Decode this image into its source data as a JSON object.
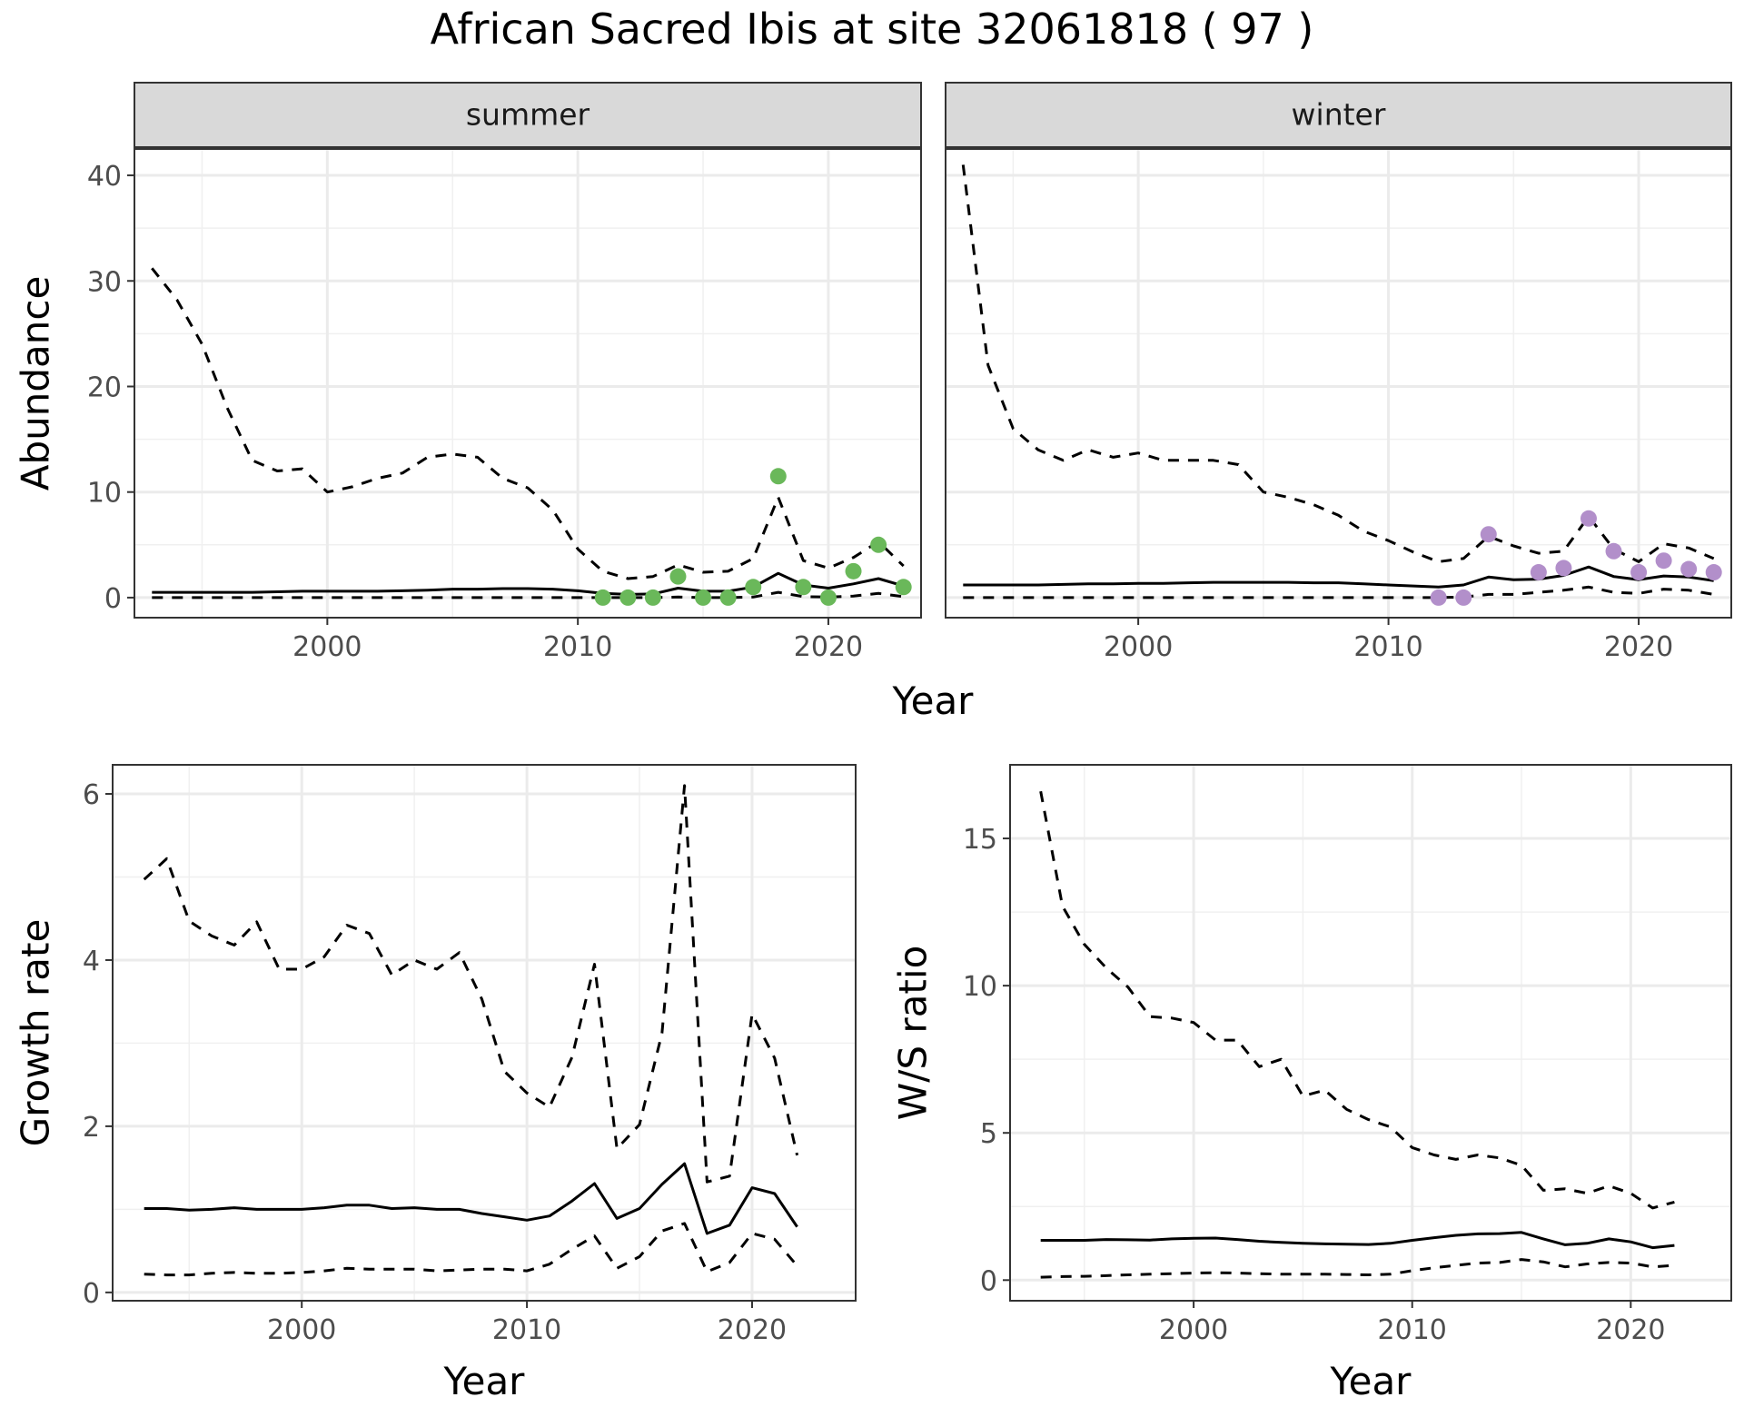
{
  "title": "African Sacred Ibis at site 32061818 ( 97 )",
  "chart_data": [
    {
      "type": "line",
      "panel": "summer",
      "strip_label": "summer",
      "xlabel": "Year",
      "ylabel": "Abundance",
      "xlim": [
        1992.3,
        2023.7
      ],
      "ylim": [
        -1.9,
        42.5
      ],
      "xticks": [
        2000,
        2010,
        2020
      ],
      "yticks": [
        0,
        10,
        20,
        30,
        40
      ],
      "grid": true,
      "series": [
        {
          "style": "solid",
          "x": [
            1993,
            1994,
            1995,
            1996,
            1997,
            1998,
            1999,
            2000,
            2001,
            2002,
            2003,
            2004,
            2005,
            2006,
            2007,
            2008,
            2009,
            2010,
            2011,
            2012,
            2013,
            2014,
            2015,
            2016,
            2017,
            2018,
            2019,
            2020,
            2021,
            2022,
            2023
          ],
          "y": [
            0.5,
            0.5,
            0.5,
            0.5,
            0.5,
            0.55,
            0.6,
            0.6,
            0.6,
            0.6,
            0.65,
            0.7,
            0.8,
            0.8,
            0.85,
            0.85,
            0.8,
            0.65,
            0.4,
            0.3,
            0.35,
            0.9,
            0.6,
            0.6,
            1.0,
            2.3,
            1.2,
            0.9,
            1.3,
            1.8,
            1.1
          ]
        },
        {
          "style": "dashed",
          "x": [
            1993,
            1994,
            1995,
            1996,
            1997,
            1998,
            1999,
            2000,
            2001,
            2002,
            2003,
            2004,
            2005,
            2006,
            2007,
            2008,
            2009,
            2010,
            2011,
            2012,
            2013,
            2014,
            2015,
            2016,
            2017,
            2018,
            2019,
            2020,
            2021,
            2022,
            2023
          ],
          "y": [
            31.2,
            28.2,
            24,
            18,
            13,
            12,
            12.2,
            10,
            10.5,
            11.3,
            11.8,
            13.3,
            13.6,
            13.3,
            11.3,
            10.4,
            8.3,
            4.6,
            2.5,
            1.8,
            2,
            3.1,
            2.4,
            2.5,
            3.7,
            9.5,
            3.5,
            2.8,
            3.8,
            5.3,
            3
          ]
        },
        {
          "style": "dashed",
          "x": [
            1993,
            1994,
            1995,
            1996,
            1997,
            1998,
            1999,
            2000,
            2001,
            2002,
            2003,
            2004,
            2005,
            2006,
            2007,
            2008,
            2009,
            2010,
            2011,
            2012,
            2013,
            2014,
            2015,
            2016,
            2017,
            2018,
            2019,
            2020,
            2021,
            2022,
            2023
          ],
          "y": [
            0,
            0,
            0,
            0,
            0,
            0,
            0,
            0,
            0,
            0,
            0,
            0,
            0,
            0,
            0,
            0,
            0,
            0,
            0,
            0,
            0,
            0.05,
            0,
            0,
            0.05,
            0.5,
            0.1,
            0.05,
            0.15,
            0.4,
            0.1
          ]
        }
      ],
      "points": {
        "color": "#6ab85a",
        "x": [
          2011,
          2012,
          2013,
          2014,
          2015,
          2016,
          2017,
          2018,
          2019,
          2020,
          2021,
          2022,
          2023
        ],
        "y": [
          0,
          0,
          0,
          2,
          0,
          0,
          1,
          11.5,
          1,
          0,
          2.5,
          5,
          1
        ]
      }
    },
    {
      "type": "line",
      "panel": "winter",
      "strip_label": "winter",
      "xlabel": "Year",
      "ylabel": "Abundance",
      "xlim": [
        1992.3,
        2023.7
      ],
      "ylim": [
        -1.9,
        42.5
      ],
      "xticks": [
        2000,
        2010,
        2020
      ],
      "yticks": [
        0,
        10,
        20,
        30,
        40
      ],
      "grid": true,
      "series": [
        {
          "style": "solid",
          "x": [
            1993,
            1994,
            1995,
            1996,
            1997,
            1998,
            1999,
            2000,
            2001,
            2002,
            2003,
            2004,
            2005,
            2006,
            2007,
            2008,
            2009,
            2010,
            2011,
            2012,
            2013,
            2014,
            2015,
            2016,
            2017,
            2018,
            2019,
            2020,
            2021,
            2022,
            2023
          ],
          "y": [
            1.2,
            1.2,
            1.2,
            1.2,
            1.25,
            1.3,
            1.3,
            1.35,
            1.35,
            1.4,
            1.45,
            1.45,
            1.45,
            1.45,
            1.4,
            1.4,
            1.3,
            1.2,
            1.1,
            1.0,
            1.2,
            1.95,
            1.7,
            1.75,
            2.1,
            2.9,
            2.0,
            1.7,
            2.05,
            1.95,
            1.6
          ]
        },
        {
          "style": "dashed",
          "x": [
            1993,
            1994,
            1995,
            1996,
            1997,
            1998,
            1999,
            2000,
            2001,
            2002,
            2003,
            2004,
            2005,
            2006,
            2007,
            2008,
            2009,
            2010,
            2011,
            2012,
            2013,
            2014,
            2015,
            2016,
            2017,
            2018,
            2019,
            2020,
            2021,
            2022,
            2023
          ],
          "y": [
            41,
            22,
            16,
            14,
            13,
            14,
            13.3,
            13.7,
            13,
            13,
            13,
            12.6,
            10,
            9.5,
            8.8,
            7.8,
            6.3,
            5.4,
            4.3,
            3.4,
            3.7,
            5.8,
            4.9,
            4.2,
            4.4,
            7.7,
            4.6,
            3.4,
            5.1,
            4.7,
            3.7
          ]
        },
        {
          "style": "dashed",
          "x": [
            1993,
            1994,
            1995,
            1996,
            1997,
            1998,
            1999,
            2000,
            2001,
            2002,
            2003,
            2004,
            2005,
            2006,
            2007,
            2008,
            2009,
            2010,
            2011,
            2012,
            2013,
            2014,
            2015,
            2016,
            2017,
            2018,
            2019,
            2020,
            2021,
            2022,
            2023
          ],
          "y": [
            0,
            0,
            0,
            0,
            0,
            0,
            0,
            0,
            0,
            0,
            0,
            0,
            0,
            0,
            0,
            0,
            0,
            0,
            0,
            0,
            0.05,
            0.3,
            0.3,
            0.5,
            0.7,
            1.0,
            0.5,
            0.4,
            0.8,
            0.7,
            0.3
          ]
        }
      ],
      "points": {
        "color": "#b28fca",
        "x": [
          2012,
          2013,
          2014,
          2016,
          2017,
          2018,
          2019,
          2020,
          2021,
          2022,
          2023
        ],
        "y": [
          0,
          0,
          6,
          2.4,
          2.8,
          7.5,
          4.4,
          2.4,
          3.5,
          2.7,
          2.4
        ]
      }
    },
    {
      "type": "line",
      "panel": "growth",
      "xlabel": "Year",
      "ylabel": "Growth rate",
      "xlim": [
        1991.6,
        2024.6
      ],
      "ylim": [
        -0.1,
        6.35
      ],
      "xticks": [
        2000,
        2010,
        2020
      ],
      "yticks": [
        0,
        2,
        4,
        6
      ],
      "grid": true,
      "series": [
        {
          "style": "solid",
          "x": [
            1993,
            1994,
            1995,
            1996,
            1997,
            1998,
            1999,
            2000,
            2001,
            2002,
            2003,
            2004,
            2005,
            2006,
            2007,
            2008,
            2009,
            2010,
            2011,
            2012,
            2013,
            2014,
            2015,
            2016,
            2017,
            2018,
            2019,
            2020,
            2021,
            2022
          ],
          "y": [
            1.01,
            1.01,
            0.99,
            1.0,
            1.02,
            1.0,
            1.0,
            1.0,
            1.02,
            1.05,
            1.05,
            1.01,
            1.02,
            1.0,
            1.0,
            0.95,
            0.91,
            0.87,
            0.92,
            1.1,
            1.31,
            0.89,
            1.01,
            1.3,
            1.55,
            0.71,
            0.81,
            1.26,
            1.19,
            0.79
          ]
        },
        {
          "style": "dashed",
          "x": [
            1993,
            1994,
            1995,
            1996,
            1997,
            1998,
            1999,
            2000,
            2001,
            2002,
            2003,
            2004,
            2005,
            2006,
            2007,
            2008,
            2009,
            2010,
            2011,
            2012,
            2013,
            2014,
            2015,
            2016,
            2017,
            2018,
            2019,
            2020,
            2021,
            2022
          ],
          "y": [
            4.97,
            5.22,
            4.47,
            4.29,
            4.18,
            4.46,
            3.89,
            3.89,
            4.04,
            4.42,
            4.32,
            3.82,
            4.0,
            3.89,
            4.09,
            3.53,
            2.66,
            2.4,
            2.23,
            2.83,
            3.95,
            1.73,
            2.02,
            3.12,
            6.1,
            1.33,
            1.4,
            3.35,
            2.82,
            1.65
          ]
        },
        {
          "style": "dashed",
          "x": [
            1993,
            1994,
            1995,
            1996,
            1997,
            1998,
            1999,
            2000,
            2001,
            2002,
            2003,
            2004,
            2005,
            2006,
            2007,
            2008,
            2009,
            2010,
            2011,
            2012,
            2013,
            2014,
            2015,
            2016,
            2017,
            2018,
            2019,
            2020,
            2021,
            2022
          ],
          "y": [
            0.22,
            0.21,
            0.21,
            0.23,
            0.24,
            0.23,
            0.23,
            0.24,
            0.26,
            0.29,
            0.28,
            0.28,
            0.28,
            0.26,
            0.27,
            0.28,
            0.28,
            0.26,
            0.34,
            0.52,
            0.68,
            0.29,
            0.43,
            0.74,
            0.83,
            0.25,
            0.36,
            0.71,
            0.64,
            0.32
          ]
        }
      ]
    },
    {
      "type": "line",
      "panel": "ws-ratio",
      "xlabel": "Year",
      "ylabel": "W/S ratio",
      "xlim": [
        1991.6,
        2024.6
      ],
      "ylim": [
        -0.7,
        17.5
      ],
      "xticks": [
        2000,
        2010,
        2020
      ],
      "yticks": [
        0,
        5,
        10,
        15
      ],
      "grid": true,
      "series": [
        {
          "style": "solid",
          "x": [
            1993,
            1994,
            1995,
            1996,
            1997,
            1998,
            1999,
            2000,
            2001,
            2002,
            2003,
            2004,
            2005,
            2006,
            2007,
            2008,
            2009,
            2010,
            2011,
            2012,
            2013,
            2014,
            2015,
            2016,
            2017,
            2018,
            2019,
            2020,
            2021,
            2022
          ],
          "y": [
            1.35,
            1.35,
            1.35,
            1.38,
            1.37,
            1.36,
            1.4,
            1.42,
            1.43,
            1.38,
            1.32,
            1.28,
            1.25,
            1.23,
            1.22,
            1.21,
            1.25,
            1.35,
            1.44,
            1.52,
            1.57,
            1.58,
            1.62,
            1.4,
            1.2,
            1.25,
            1.4,
            1.3,
            1.1,
            1.18
          ]
        },
        {
          "style": "dashed",
          "x": [
            1993,
            1994,
            1995,
            1996,
            1997,
            1998,
            1999,
            2000,
            2001,
            2002,
            2003,
            2004,
            2005,
            2006,
            2007,
            2008,
            2009,
            2010,
            2011,
            2012,
            2013,
            2014,
            2015,
            2016,
            2017,
            2018,
            2019,
            2020,
            2021,
            2022
          ],
          "y": [
            16.6,
            12.7,
            11.4,
            10.6,
            9.95,
            8.95,
            8.9,
            8.75,
            8.15,
            8.15,
            7.25,
            7.5,
            6.25,
            6.45,
            5.8,
            5.45,
            5.2,
            4.5,
            4.25,
            4.1,
            4.25,
            4.15,
            3.9,
            3.05,
            3.1,
            2.95,
            3.2,
            2.95,
            2.45,
            2.65
          ]
        },
        {
          "style": "dashed",
          "x": [
            1993,
            1994,
            1995,
            1996,
            1997,
            1998,
            1999,
            2000,
            2001,
            2002,
            2003,
            2004,
            2005,
            2006,
            2007,
            2008,
            2009,
            2010,
            2011,
            2012,
            2013,
            2014,
            2015,
            2016,
            2017,
            2018,
            2019,
            2020,
            2021,
            2022
          ],
          "y": [
            0.1,
            0.12,
            0.13,
            0.15,
            0.18,
            0.2,
            0.22,
            0.24,
            0.25,
            0.24,
            0.22,
            0.2,
            0.2,
            0.2,
            0.19,
            0.18,
            0.2,
            0.32,
            0.42,
            0.5,
            0.58,
            0.6,
            0.7,
            0.62,
            0.45,
            0.55,
            0.6,
            0.58,
            0.45,
            0.5
          ]
        }
      ]
    }
  ]
}
